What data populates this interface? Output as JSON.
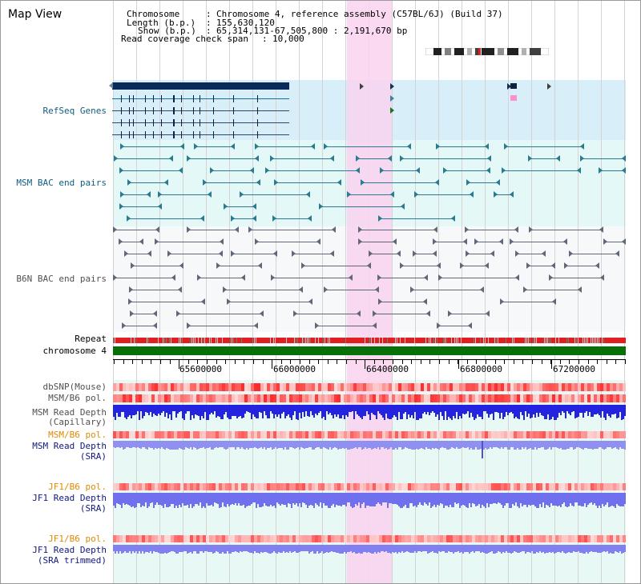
{
  "view": {
    "title": "Map View"
  },
  "header": {
    "chromosome_label": "Chromosome",
    "chromosome_value": "Chromosome 4, reference assembly (C57BL/6J) (Build 37)",
    "length_label": "Length (b.p.)",
    "length_value": "155,630,120",
    "show_label": "Show (b.p.)",
    "show_value": "65,314,131-67,505,800 : 2,191,670 bp",
    "span_label": "Read coverage check span",
    "span_value": "10,000"
  },
  "tracks": {
    "refseq": "RefSeq Genes",
    "msm_bac": "MSM BAC end pairs",
    "b6n_bac": "B6N BAC end pairs",
    "repeat": "Repeat",
    "chromosome": "chromosome 4",
    "dbsnp": "dbSNP(Mouse)",
    "msm_b6_pol": "MSM/B6 pol.",
    "msm_depth_cap_1": "MSM Read Depth",
    "msm_depth_cap_2": "(Capillary)",
    "msm_b6_pol_2": "MSM/B6 pol.",
    "msm_depth_sra_1": "MSM Read Depth",
    "msm_depth_sra_2": "(SRA)",
    "jf1_b6_pol": "JF1/B6 pol.",
    "jf1_depth_sra_1": "JF1 Read Depth",
    "jf1_depth_sra_2": "(SRA)",
    "jf1_b6_pol_2": "JF1/B6 pol.",
    "jf1_depth_trim_1": "JF1 Read Depth",
    "jf1_depth_trim_2": "(SRA trimmed)"
  },
  "ruler": {
    "ticks": [
      "65600000",
      "66000000",
      "66400000",
      "66800000",
      "67200000"
    ]
  },
  "colors": {
    "highlight": "#f9d2ee",
    "refseq_bg": "#d8eef8",
    "msm_bg": "#e4f8f8",
    "b6n_bg": "#f6f8fa",
    "lower_bg": "#e4f8f8",
    "chromosome_bar": "#087008",
    "repeat_bar": "#e02020",
    "depth_blue": "#2020e8",
    "depth_light": "#8888ff",
    "pol_red": "#ff5050"
  }
}
